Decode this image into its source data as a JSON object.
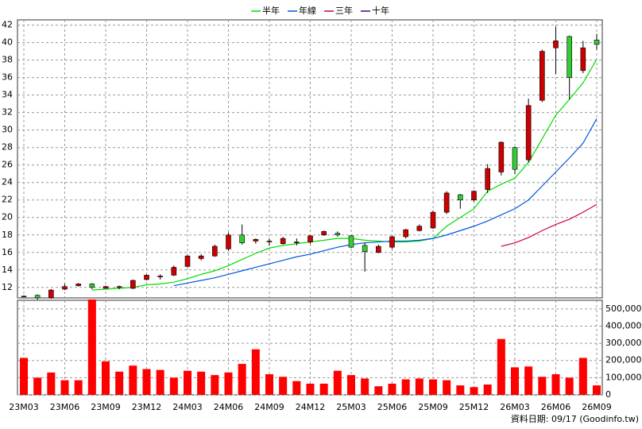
{
  "chart_data": [
    {
      "type": "candlestick",
      "categories": [
        "23M03",
        null,
        null,
        "23M06",
        null,
        null,
        "23M09",
        null,
        null,
        "23M12",
        null,
        null,
        "24M03",
        null,
        null,
        "24M06",
        null,
        null,
        "24M09",
        null,
        null,
        "24M12",
        null,
        null,
        "25M03",
        null,
        null,
        "25M06",
        null,
        null,
        "25M09",
        null,
        null,
        "25M12",
        null,
        null,
        "26M03",
        null,
        null,
        "26M06",
        null,
        null,
        "26M09"
      ],
      "open": [
        11.0,
        11.1,
        10.8,
        11.8,
        12.2,
        12.4,
        11.9,
        12.0,
        11.9,
        12.9,
        13.2,
        13.4,
        14.4,
        15.3,
        15.6,
        16.4,
        18.0,
        17.3,
        17.3,
        17.0,
        17.2,
        17.2,
        18.0,
        18.2,
        17.9,
        16.8,
        16.0,
        16.6,
        17.8,
        18.5,
        18.8,
        20.6,
        22.6,
        22.0,
        23.2,
        25.2,
        28.0,
        26.6,
        33.4,
        39.4,
        40.7,
        36.8,
        40.3
      ],
      "high": [
        11.1,
        11.2,
        11.8,
        12.4,
        12.5,
        12.5,
        12.2,
        12.2,
        12.9,
        13.5,
        13.5,
        14.5,
        15.7,
        15.8,
        16.9,
        18.3,
        19.2,
        17.6,
        17.6,
        17.8,
        17.6,
        18.0,
        18.5,
        18.4,
        18.0,
        17.1,
        16.9,
        17.9,
        18.7,
        19.2,
        20.8,
        23.0,
        22.7,
        23.1,
        26.1,
        28.7,
        28.1,
        33.6,
        39.2,
        41.8,
        40.8,
        40.2,
        41.0
      ],
      "low": [
        10.9,
        10.6,
        10.7,
        11.7,
        12.1,
        11.8,
        11.9,
        11.8,
        11.8,
        12.8,
        12.9,
        13.3,
        14.3,
        15.1,
        15.5,
        16.2,
        16.9,
        17.0,
        16.8,
        16.9,
        16.8,
        17.0,
        17.9,
        17.8,
        16.5,
        13.8,
        15.9,
        16.4,
        17.6,
        18.4,
        18.7,
        20.4,
        21.0,
        21.8,
        22.8,
        24.8,
        25.0,
        26.3,
        33.2,
        36.4,
        33.5,
        36.5,
        39.2
      ],
      "close": [
        11.0,
        10.8,
        11.7,
        12.1,
        12.4,
        12.0,
        12.1,
        12.1,
        12.8,
        13.4,
        13.3,
        14.3,
        15.6,
        15.6,
        16.7,
        18.0,
        17.1,
        17.5,
        17.3,
        17.6,
        17.2,
        17.9,
        18.4,
        18.0,
        16.6,
        16.1,
        16.7,
        17.8,
        18.6,
        19.0,
        20.6,
        22.8,
        22.0,
        23.0,
        25.6,
        28.6,
        25.5,
        32.8,
        39.0,
        40.2,
        36.0,
        39.4,
        39.8
      ],
      "up_color": "#cc0000",
      "down_color": "#33cc33",
      "series": [
        {
          "name": "半年",
          "color": "#00dd00",
          "values": [
            null,
            null,
            null,
            null,
            null,
            11.7,
            11.8,
            11.9,
            12.0,
            12.3,
            12.4,
            12.6,
            13.0,
            13.5,
            13.9,
            14.5,
            15.2,
            15.9,
            16.5,
            16.8,
            17.0,
            17.2,
            17.4,
            17.6,
            17.6,
            17.4,
            17.3,
            17.2,
            17.2,
            17.3,
            17.6,
            19.0,
            20.0,
            21.0,
            23.0,
            23.8,
            24.5,
            26.3,
            29.0,
            31.7,
            33.5,
            35.4,
            38.1
          ]
        },
        {
          "name": "年線",
          "color": "#0055dd",
          "values": [
            null,
            null,
            null,
            null,
            null,
            null,
            null,
            null,
            null,
            null,
            null,
            12.2,
            12.5,
            12.8,
            13.1,
            13.5,
            13.9,
            14.3,
            14.7,
            15.1,
            15.5,
            15.8,
            16.2,
            16.6,
            16.9,
            17.1,
            17.2,
            17.3,
            17.3,
            17.4,
            17.6,
            18.0,
            18.5,
            19.0,
            19.6,
            20.3,
            21.0,
            22.0,
            23.6,
            25.2,
            26.8,
            28.5,
            31.3
          ]
        },
        {
          "name": "三年",
          "color": "#cc0044",
          "values": [
            null,
            null,
            null,
            null,
            null,
            null,
            null,
            null,
            null,
            null,
            null,
            null,
            null,
            null,
            null,
            null,
            null,
            null,
            null,
            null,
            null,
            null,
            null,
            null,
            null,
            null,
            null,
            null,
            null,
            null,
            null,
            null,
            null,
            null,
            null,
            16.7,
            17.1,
            17.7,
            18.5,
            19.2,
            19.8,
            20.6,
            21.5
          ]
        },
        {
          "name": "十年",
          "color": "#440088",
          "values": [
            null,
            null,
            null,
            null,
            null,
            null,
            null,
            null,
            null,
            null,
            null,
            null,
            null,
            null,
            null,
            null,
            null,
            null,
            null,
            null,
            null,
            null,
            null,
            null,
            null,
            null,
            null,
            null,
            null,
            null,
            null,
            null,
            null,
            null,
            null,
            null,
            null,
            null,
            null,
            null,
            null,
            null,
            null
          ]
        }
      ],
      "ylim": [
        10.8,
        42.6
      ],
      "yticks": [
        12,
        14,
        16,
        18,
        20,
        22,
        24,
        26,
        28,
        30,
        32,
        34,
        36,
        38,
        40,
        42
      ],
      "grid": true
    },
    {
      "type": "bar",
      "values": [
        215000,
        100000,
        130000,
        85000,
        85000,
        555000,
        195000,
        135000,
        170000,
        150000,
        145000,
        100000,
        140000,
        135000,
        115000,
        130000,
        180000,
        265000,
        120000,
        105000,
        80000,
        65000,
        65000,
        140000,
        115000,
        95000,
        50000,
        65000,
        90000,
        95000,
        90000,
        85000,
        55000,
        45000,
        60000,
        325000,
        160000,
        165000,
        105000,
        120000,
        100000,
        215000,
        55000
      ],
      "color": "#ff0000",
      "ylim": [
        0,
        550000
      ],
      "yticks": [
        0,
        {
          "value": 100000,
          "label": "100,000"
        },
        {
          "value": 200000,
          "label": "200,000"
        },
        {
          "value": 300000,
          "label": "300,000"
        },
        {
          "value": 400000,
          "label": "400,000"
        },
        {
          "value": 500000,
          "label": "500,000"
        }
      ],
      "grid": true,
      "footnote": "資料日期: 09/17 (Goodinfo.tw)"
    }
  ]
}
